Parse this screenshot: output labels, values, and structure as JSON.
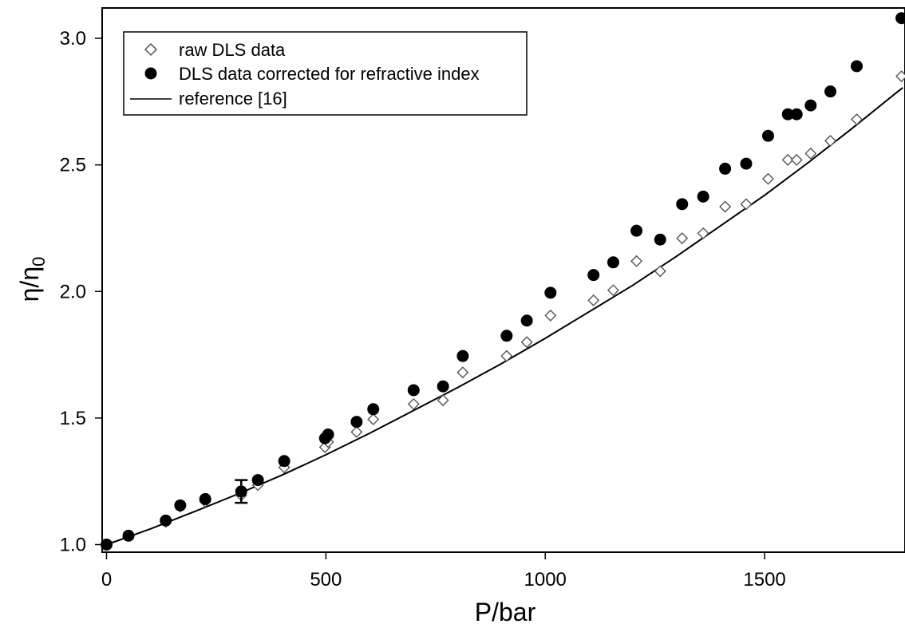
{
  "chart_data": {
    "type": "scatter",
    "xlabel": "P/bar",
    "ylabel_base": "η/η",
    "ylabel_sub": "0",
    "xlim": [
      -10,
      1820
    ],
    "ylim": [
      0.97,
      3.12
    ],
    "x_ticks": [
      0,
      500,
      1000,
      1500
    ],
    "x_tick_labels": [
      "0",
      "500",
      "1000",
      "1500"
    ],
    "y_ticks": [
      1.0,
      1.5,
      2.0,
      2.5,
      3.0
    ],
    "y_tick_labels": [
      "1.0",
      "1.5",
      "2.0",
      "2.5",
      "3.0"
    ],
    "legend_position": "top-left",
    "series": [
      {
        "name": "raw DLS data",
        "marker": "open-diamond",
        "color": "#555555",
        "x": [
          0,
          50,
          135,
          168,
          225,
          307,
          345,
          405,
          498,
          505,
          570,
          608,
          700,
          767,
          812,
          912,
          958,
          1012,
          1110,
          1155,
          1208,
          1262,
          1312,
          1360,
          1410,
          1458,
          1508,
          1553,
          1573,
          1605,
          1650,
          1710,
          1812
        ],
        "y": [
          1.0,
          1.035,
          1.09,
          1.15,
          1.17,
          1.195,
          1.235,
          1.305,
          1.385,
          1.405,
          1.445,
          1.495,
          1.555,
          1.57,
          1.68,
          1.745,
          1.8,
          1.905,
          1.965,
          2.005,
          2.12,
          2.08,
          2.21,
          2.23,
          2.335,
          2.345,
          2.445,
          2.52,
          2.52,
          2.545,
          2.595,
          2.68,
          2.85
        ]
      },
      {
        "name": "DLS data corrected for refractive index",
        "marker": "filled-circle",
        "color": "#000000",
        "x": [
          0,
          50,
          135,
          168,
          225,
          307,
          345,
          405,
          498,
          505,
          570,
          608,
          700,
          767,
          812,
          912,
          958,
          1012,
          1110,
          1155,
          1208,
          1262,
          1312,
          1360,
          1410,
          1458,
          1508,
          1553,
          1573,
          1605,
          1650,
          1710,
          1812
        ],
        "y": [
          1.0,
          1.035,
          1.095,
          1.155,
          1.18,
          1.21,
          1.255,
          1.33,
          1.42,
          1.435,
          1.485,
          1.535,
          1.61,
          1.625,
          1.745,
          1.825,
          1.885,
          1.995,
          2.065,
          2.115,
          2.24,
          2.205,
          2.345,
          2.375,
          2.485,
          2.505,
          2.615,
          2.7,
          2.7,
          2.735,
          2.79,
          2.89,
          3.08
        ]
      },
      {
        "name": "reference [16]",
        "marker": "line",
        "color": "#000000",
        "x": [
          0,
          100,
          200,
          300,
          400,
          500,
          600,
          700,
          800,
          900,
          1000,
          1100,
          1200,
          1300,
          1400,
          1500,
          1600,
          1700,
          1800,
          1815
        ],
        "y": [
          1.0,
          1.062,
          1.13,
          1.2,
          1.275,
          1.355,
          1.44,
          1.53,
          1.62,
          1.715,
          1.815,
          1.92,
          2.025,
          2.14,
          2.26,
          2.38,
          2.51,
          2.645,
          2.785,
          2.805
        ]
      }
    ],
    "error_bar": {
      "x": 307,
      "y": 1.21,
      "low": 1.165,
      "high": 1.255
    }
  }
}
